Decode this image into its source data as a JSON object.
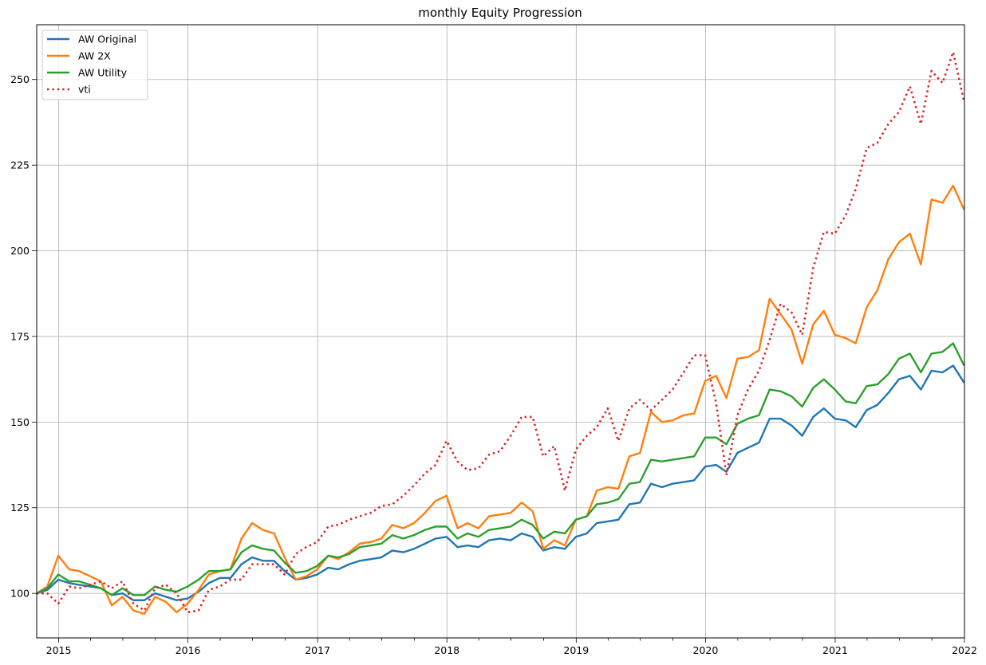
{
  "chart_data": {
    "type": "line",
    "title": "monthly Equity Progression",
    "xlabel": "",
    "ylabel": "",
    "x_type": "date",
    "xlim": [
      "2014-10-31",
      "2022-01-01"
    ],
    "ylim": [
      87,
      266
    ],
    "grid": true,
    "legend_position": "top-left",
    "x_ticks": [
      "2015",
      "2016",
      "2017",
      "2018",
      "2019",
      "2020",
      "2021",
      "2022"
    ],
    "y_ticks": [
      "100",
      "125",
      "150",
      "175",
      "200",
      "225",
      "250"
    ],
    "x": [
      "2014-10-31",
      "2014-11-30",
      "2014-12-31",
      "2015-01-31",
      "2015-02-28",
      "2015-03-31",
      "2015-04-30",
      "2015-05-31",
      "2015-06-30",
      "2015-07-31",
      "2015-08-31",
      "2015-09-30",
      "2015-10-31",
      "2015-11-30",
      "2015-12-31",
      "2016-01-31",
      "2016-02-29",
      "2016-03-31",
      "2016-04-30",
      "2016-05-31",
      "2016-06-30",
      "2016-07-31",
      "2016-08-31",
      "2016-09-30",
      "2016-10-31",
      "2016-11-30",
      "2016-12-31",
      "2017-01-31",
      "2017-02-28",
      "2017-03-31",
      "2017-04-30",
      "2017-05-31",
      "2017-06-30",
      "2017-07-31",
      "2017-08-31",
      "2017-09-30",
      "2017-10-31",
      "2017-11-30",
      "2017-12-31",
      "2018-01-31",
      "2018-02-28",
      "2018-03-31",
      "2018-04-30",
      "2018-05-31",
      "2018-06-30",
      "2018-07-31",
      "2018-08-31",
      "2018-09-30",
      "2018-10-31",
      "2018-11-30",
      "2018-12-31",
      "2019-01-31",
      "2019-02-28",
      "2019-03-31",
      "2019-04-30",
      "2019-05-31",
      "2019-06-30",
      "2019-07-31",
      "2019-08-31",
      "2019-09-30",
      "2019-10-31",
      "2019-11-30",
      "2019-12-31",
      "2020-01-31",
      "2020-02-29",
      "2020-03-31",
      "2020-04-30",
      "2020-05-31",
      "2020-06-30",
      "2020-07-31",
      "2020-08-31",
      "2020-09-30",
      "2020-10-31",
      "2020-11-30",
      "2020-12-31",
      "2021-01-31",
      "2021-02-28",
      "2021-03-31",
      "2021-04-30",
      "2021-05-31",
      "2021-06-30",
      "2021-07-31",
      "2021-08-31",
      "2021-09-30",
      "2021-10-31",
      "2021-11-30",
      "2021-12-31"
    ],
    "series": [
      {
        "name": "AW Original",
        "color": "#1f77b4",
        "style": "solid",
        "values": [
          100,
          101,
          104,
          103,
          102.5,
          102,
          101.5,
          99.5,
          100,
          98,
          98,
          100,
          99,
          98,
          98.5,
          100.5,
          103,
          104.5,
          104.5,
          108.5,
          110.5,
          109.5,
          109.5,
          106.5,
          104,
          104.5,
          105.5,
          107.5,
          107,
          108.5,
          109.5,
          110,
          110.5,
          112.5,
          112,
          113,
          114.5,
          116,
          116.5,
          113.5,
          114,
          113.5,
          115.5,
          116,
          115.5,
          117.5,
          116.5,
          112.5,
          113.5,
          113,
          116.5,
          117.5,
          120.5,
          121,
          121.5,
          126,
          126.5,
          132,
          131,
          132,
          132.5,
          133,
          137,
          137.5,
          135.5,
          141,
          142.5,
          144,
          151,
          151,
          149,
          146,
          151.5,
          154,
          151,
          150.5,
          148.5,
          153.5,
          155,
          158.5,
          162.5,
          163.5,
          159.5,
          165,
          164.5,
          166.5,
          161.5
        ]
      },
      {
        "name": "AW 2X",
        "color": "#ff7f0e",
        "style": "solid",
        "values": [
          100,
          102,
          111,
          107,
          106.5,
          105,
          103.5,
          96.5,
          99,
          95,
          94,
          99,
          97.5,
          94.5,
          97,
          101,
          105.5,
          106.5,
          107,
          116,
          120.5,
          118.5,
          117.5,
          110.5,
          104,
          105,
          107,
          111,
          110,
          112,
          114.5,
          115,
          116,
          120,
          119,
          120.5,
          123.5,
          127,
          128.5,
          119,
          120.5,
          119,
          122.5,
          123,
          123.5,
          126.5,
          124,
          113,
          115.5,
          114,
          121.5,
          122.5,
          130,
          131,
          130.5,
          140,
          141,
          153,
          150,
          150.5,
          152,
          152.5,
          162,
          163.5,
          157,
          168.5,
          169,
          171,
          186,
          181.5,
          177,
          167,
          178.5,
          182.5,
          175.5,
          174.5,
          173,
          183.5,
          188.5,
          197.5,
          202.5,
          205,
          196,
          215,
          214,
          219,
          212
        ]
      },
      {
        "name": "AW Utility",
        "color": "#2ca02c",
        "style": "solid",
        "values": [
          100,
          101.5,
          105.5,
          103.5,
          103.5,
          102.5,
          101.5,
          99.5,
          101.5,
          99.5,
          99.5,
          102,
          101,
          100.5,
          102,
          104,
          106.5,
          106.5,
          107,
          112,
          114,
          113,
          112.5,
          109,
          106,
          106.5,
          108,
          111,
          110.5,
          111.5,
          113.5,
          114,
          114.5,
          117,
          116,
          117,
          118.5,
          119.5,
          119.5,
          116,
          117.5,
          116.5,
          118.5,
          119,
          119.5,
          121.5,
          120,
          116,
          118,
          117.5,
          121.5,
          122.5,
          126,
          126.5,
          127.5,
          132,
          132.5,
          139,
          138.5,
          139,
          139.5,
          140,
          145.5,
          145.5,
          143.5,
          149.5,
          151,
          152,
          159.5,
          159,
          157.5,
          154.5,
          160,
          162.5,
          159.5,
          156,
          155.5,
          160.5,
          161,
          164,
          168.5,
          170,
          164.5,
          170,
          170.5,
          173,
          166.5
        ]
      },
      {
        "name": "vti",
        "color": "#d62728",
        "style": "dotted",
        "values": [
          100,
          100,
          97,
          102,
          101.5,
          102.5,
          103.5,
          101.5,
          103.5,
          97,
          95,
          101.5,
          102.5,
          100,
          94.5,
          95,
          101,
          102,
          104,
          104,
          108.5,
          108.5,
          108.5,
          105.5,
          111.5,
          113.5,
          115,
          119.5,
          120,
          121.5,
          122.5,
          123.5,
          125.5,
          126,
          128.5,
          131.5,
          135,
          137.5,
          144.5,
          138.5,
          136,
          136.5,
          140.5,
          141.5,
          146,
          151.5,
          151.5,
          140,
          143,
          130,
          142,
          146,
          148.5,
          154,
          144.5,
          154,
          156.5,
          153.5,
          156.5,
          159.5,
          164.5,
          169.5,
          169.5,
          155.5,
          134.5,
          152,
          159.5,
          165,
          174,
          184.5,
          182,
          175.5,
          195,
          205.5,
          205,
          210.5,
          218,
          230,
          231.5,
          237,
          240.5,
          248,
          237,
          252.5,
          249,
          258,
          243.5
        ]
      }
    ]
  }
}
